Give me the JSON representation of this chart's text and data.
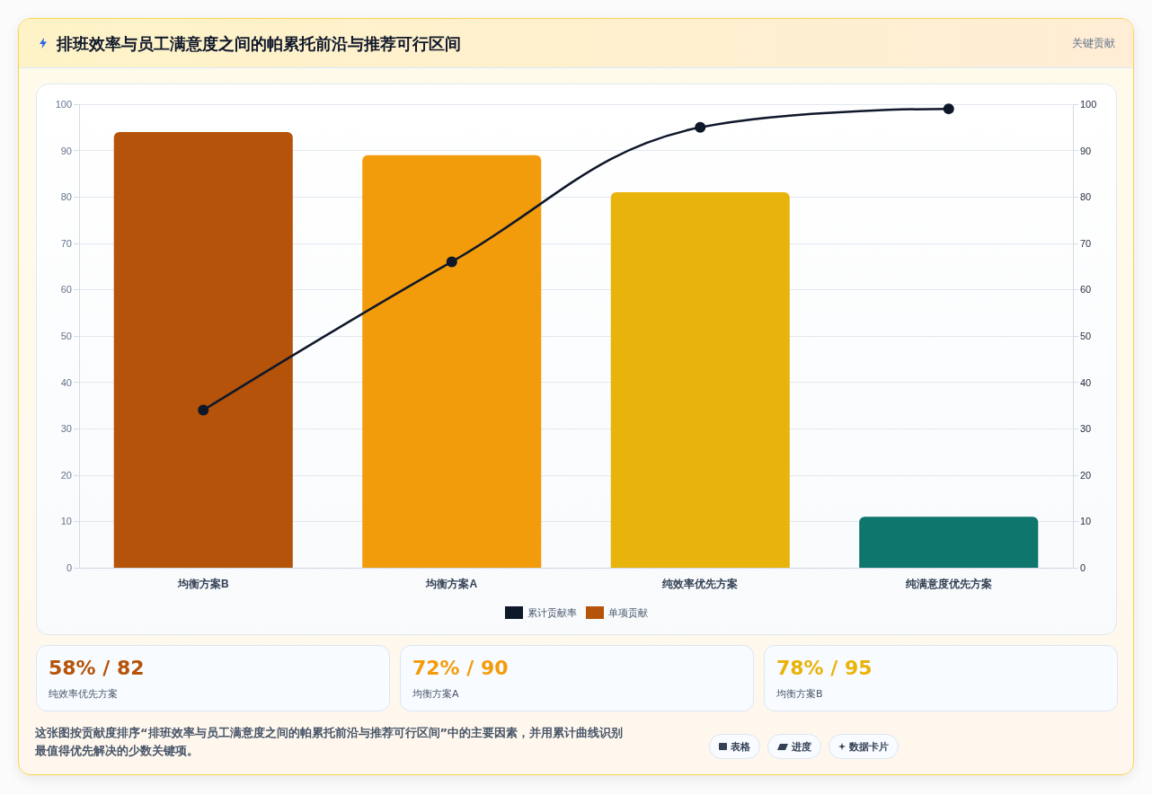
{
  "chart_data": [
    {
      "type": "bar",
      "title": "排班效率与员工满意度之间的帕累托前沿与推荐可行区间",
      "subtitle": "关键贡献",
      "categories": [
        "均衡方案B",
        "均衡方案A",
        "纯效率优先方案",
        "纯满意度优先方案"
      ],
      "series": [
        {
          "name": "累计贡献率",
          "type": "line",
          "color": "#0f172a",
          "axis": "y2",
          "marker": "circle",
          "values": [
            34,
            66,
            95,
            99
          ]
        },
        {
          "name": "单项贡献",
          "type": "bar",
          "colors": [
            "#b45309",
            "#f39c0b",
            "#e8b30a",
            "#0f766e"
          ],
          "values": [
            94,
            89,
            81,
            11
          ]
        }
      ],
      "ylim": [
        0,
        100
      ],
      "yticks": [
        0,
        10,
        20,
        30,
        40,
        50,
        60,
        70,
        80,
        90,
        100
      ],
      "y2lim": [
        0,
        100
      ],
      "y2ticks": [
        0,
        10,
        20,
        30,
        40,
        50,
        60,
        70,
        80,
        90,
        100
      ],
      "grid": "y",
      "legend": "bottom",
      "line_style": "solid",
      "annotations": [
        "这张图按贡献度排序“排班效率与员工满意度之间的帕累托前沿与推荐可行区间”中的主要因素，并用累计曲线识别最值得优先解决的少数关键项。",
        "表格",
        "进度",
        "数据卡片"
      ]
    },
    {
      "type": "other",
      "annotations": [
        "58% / 82",
        "纯效率优先方案",
        "72% / 90",
        "均衡方案A",
        "78% / 95",
        "均衡方案B"
      ],
      "colors": [
        "#b45309",
        "#f39c0b",
        "#eab308"
      ]
    }
  ]
}
